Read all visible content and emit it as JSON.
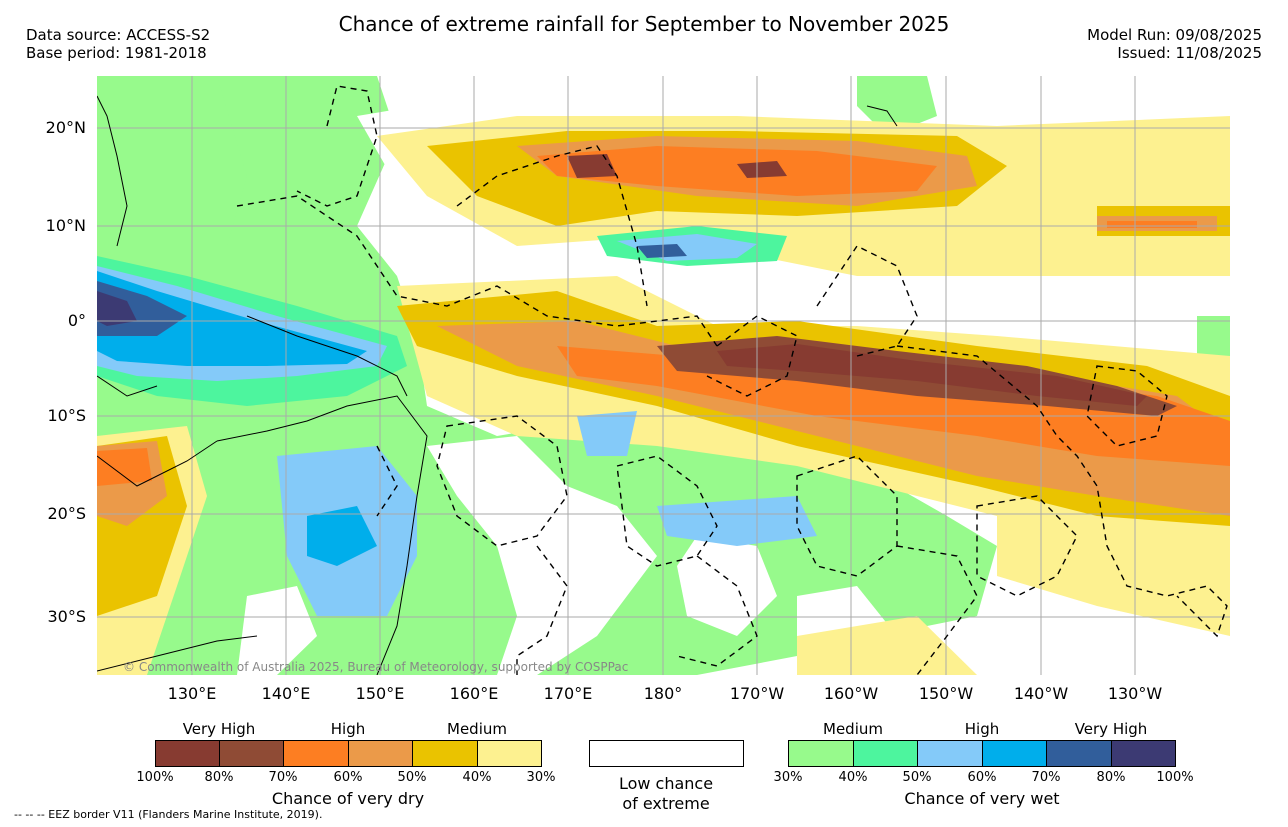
{
  "header": {
    "title": "Chance of extreme rainfall for September to November 2025",
    "data_source": "Data source: ACCESS-S2",
    "base_period": "Base period: 1981-2018",
    "model_run": "Model Run: 09/08/2025",
    "issued": "Issued: 11/08/2025"
  },
  "map": {
    "lat_labels": [
      "20°N",
      "10°N",
      "0°",
      "10°S",
      "20°S",
      "30°S"
    ],
    "lon_labels": [
      "130°E",
      "140°E",
      "150°E",
      "160°E",
      "170°E",
      "180°",
      "170°W",
      "160°W",
      "150°W",
      "140°W",
      "130°W"
    ],
    "credit": "© Commonwealth of Australia 2025, Bureau of Meteorology, supported by COSPPac"
  },
  "legend": {
    "dry": {
      "levels": [
        "Very High",
        "High",
        "Medium"
      ],
      "ticks": [
        "100%",
        "80%",
        "70%",
        "60%",
        "50%",
        "40%",
        "30%"
      ],
      "colors": [
        "#873b31",
        "#8f4b35",
        "#fd7e22",
        "#eb9a49",
        "#eac300",
        "#fdf190"
      ],
      "caption": "Chance of very dry"
    },
    "neutral": {
      "caption_line1": "Low chance",
      "caption_line2": "of extreme",
      "color": "#ffffff"
    },
    "wet": {
      "levels": [
        "Medium",
        "High",
        "Very High"
      ],
      "ticks": [
        "30%",
        "40%",
        "50%",
        "60%",
        "70%",
        "80%",
        "100%"
      ],
      "colors": [
        "#97fa8c",
        "#4df59e",
        "#84caf9",
        "#00aeeb",
        "#315e9b",
        "#3c3a73"
      ],
      "caption": "Chance of very wet"
    }
  },
  "footer": {
    "eez_note": "--  --  -- EEZ border V11 (Flanders Marine Institute, 2019)."
  }
}
